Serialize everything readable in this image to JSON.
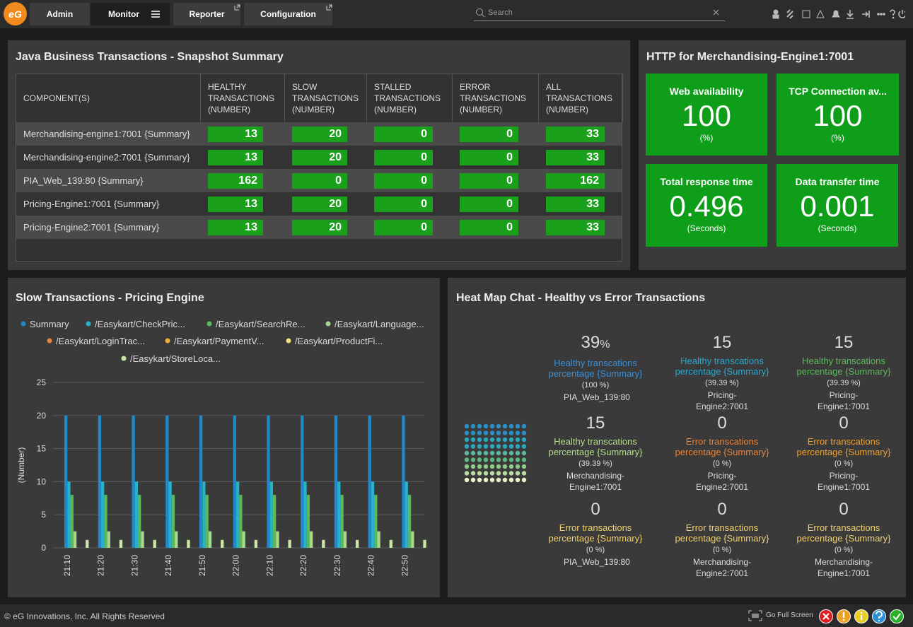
{
  "nav": {
    "logo": "eG",
    "tabs": [
      "Admin",
      "Monitor",
      "Reporter",
      "Configuration"
    ],
    "search_placeholder": "Search"
  },
  "snapshot": {
    "title": "Java Business Transactions - Snapshot Summary",
    "columns": [
      "COMPONENT(S)",
      "HEALTHY TRANSACTIONS (NUMBER)",
      "SLOW TRANSACTIONS (NUMBER)",
      "STALLED TRANSACTIONS (NUMBER)",
      "ERROR TRANSACTIONS (NUMBER)",
      "ALL TRANSACTIONS (NUMBER)"
    ],
    "rows": [
      [
        "Merchandising-engine1:7001 {Summary}",
        13,
        20,
        0,
        0,
        33
      ],
      [
        "Merchandising-engine2:7001 {Summary}",
        13,
        20,
        0,
        0,
        33
      ],
      [
        "PIA_Web_139:80 {Summary}",
        162,
        0,
        0,
        0,
        162
      ],
      [
        "Pricing-Engine1:7001 {Summary}",
        13,
        20,
        0,
        0,
        33
      ],
      [
        "Pricing-Engine2:7001 {Summary}",
        13,
        20,
        0,
        0,
        33
      ]
    ]
  },
  "http": {
    "title": "HTTP for Merchandising-Engine1:7001",
    "tiles": [
      {
        "label": "Web availability",
        "value": 100,
        "unit": "(%)"
      },
      {
        "label": "TCP Connection av...",
        "value": 100,
        "unit": "(%)"
      },
      {
        "label": "Total response time",
        "value": 0.496,
        "unit": "(Seconds)"
      },
      {
        "label": "Data transfer time",
        "value": 0.001,
        "unit": "(Seconds)"
      }
    ]
  },
  "chart_data": {
    "type": "bar",
    "title": "Slow Transactions - Pricing Engine",
    "y_label": "(Number)",
    "categories": [
      "21:10",
      "21:20",
      "21:30",
      "21:40",
      "21:50",
      "22:00",
      "22:10",
      "22:20",
      "22:30",
      "22:40",
      "22:50"
    ],
    "series": [
      {
        "name": "Summary",
        "color": "#1e88c8",
        "values": [
          20,
          20,
          20,
          20,
          20,
          20,
          20,
          20,
          20,
          20,
          20
        ]
      },
      {
        "name": "/Easykart/CheckPric...",
        "color": "#26b3c9",
        "values": [
          10,
          10,
          10,
          10,
          10,
          10,
          10,
          10,
          10,
          10,
          10
        ]
      },
      {
        "name": "/Easykart/SearchRe...",
        "color": "#5cb85c",
        "values": [
          8,
          8,
          8,
          8,
          8,
          8,
          8,
          8,
          8,
          8,
          8
        ]
      },
      {
        "name": "/Easykart/Language...",
        "color": "#a6d98a",
        "values": [
          2.5,
          2.5,
          2.5,
          2.5,
          2.5,
          2.5,
          2.5,
          2.5,
          2.5,
          2.5,
          2.5
        ]
      },
      {
        "name": "/Easykart/LoginTrac...",
        "color": "#e8833a",
        "values": [
          0,
          0,
          0,
          0,
          0,
          0,
          0,
          0,
          0,
          0,
          0
        ]
      },
      {
        "name": "/Easykart/PaymentV...",
        "color": "#f0ad3c",
        "values": [
          0,
          0,
          0,
          0,
          0,
          0,
          0,
          0,
          0,
          0,
          0
        ]
      },
      {
        "name": "/Easykart/ProductFi...",
        "color": "#f1df84",
        "values": [
          0,
          0,
          0,
          0,
          0,
          0,
          0,
          0,
          0,
          0,
          0
        ]
      },
      {
        "name": "/Easykart/StoreLoca...",
        "color": "#c9e6a4",
        "values": [
          1.2,
          1.2,
          1.2,
          1.2,
          1.2,
          1.2,
          1.2,
          1.2,
          1.2,
          1.2,
          1.2
        ]
      }
    ],
    "ylim": [
      0,
      25
    ],
    "yticks": [
      0,
      5,
      10,
      15,
      20,
      25
    ],
    "grid": true
  },
  "heatmap": {
    "title": "Heat Map Chat - Healthy vs Error Transactions",
    "cells": [
      {
        "value": 39,
        "unit": "%",
        "label": "Healthy transcations percentage {Summary}",
        "percent": "(100 %)",
        "component": "PIA_Web_139:80",
        "color": "#3a8fd6"
      },
      {
        "value": 15,
        "label": "Healthy transcations percentage {Summary}",
        "percent": "(39.39 %)",
        "component": "Pricing-Engine2:7001",
        "color": "#2aa8d0"
      },
      {
        "value": 15,
        "label": "Healthy transcations percentage {Summary}",
        "percent": "(39.39 %)",
        "component": "Pricing-Engine1:7001",
        "color": "#5cb85c"
      },
      {
        "value": 15,
        "label": "Healthy transcations percentage {Summary}",
        "percent": "(39.39 %)",
        "component": "Merchandising-Engine1:7001",
        "color": "#b5dc8c"
      },
      {
        "value": 0,
        "label": "Error transcations percentage {Summary}",
        "percent": "(0 %)",
        "component": "Pricing-Engine2:7001",
        "color": "#e8833a"
      },
      {
        "value": 0,
        "label": "Error transcations percentage {Summary}",
        "percent": "(0 %)",
        "component": "Pricing-Engine1:7001",
        "color": "#f0a030"
      },
      {
        "value": 0,
        "label": "Error transactions percentage {Summary}",
        "percent": "(0 %)",
        "component": "PIA_Web_139:80",
        "color": "#f0d070"
      },
      {
        "value": 0,
        "label": "Error transactions percentage {Summary}",
        "percent": "(0 %)",
        "component": "Merchandising-Engine2:7001",
        "color": "#f0d070"
      },
      {
        "value": 0,
        "label": "Error transactions percentage {Summary}",
        "percent": "(0 %)",
        "component": "Merchandising-Engine1:7001",
        "color": "#f0d070"
      }
    ]
  },
  "footer": {
    "copyright": "© eG Innovations, Inc. All Rights Reserved",
    "fullscreen": "Go Full Screen"
  }
}
